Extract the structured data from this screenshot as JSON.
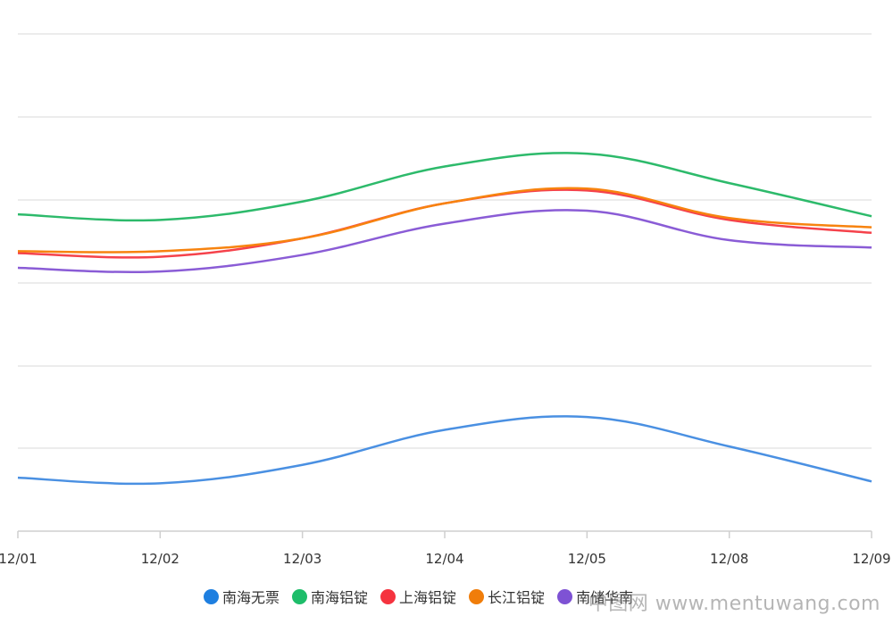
{
  "chart_data": {
    "type": "line",
    "categories": [
      "12/01",
      "12/02",
      "12/03",
      "12/04",
      "12/05",
      "12/08",
      "12/09"
    ],
    "grid": true,
    "legend_position": "bottom",
    "series": [
      {
        "name": "南海无票",
        "color": "#4a90e2",
        "values": [
          19890,
          19860,
          19960,
          20150,
          20220,
          20060,
          19870
        ]
      },
      {
        "name": "南海铝锭",
        "color": "#2dba6b",
        "values": [
          21320,
          21290,
          21390,
          21580,
          21650,
          21490,
          21310
        ]
      },
      {
        "name": "上海铝锭",
        "color": "#f5424b",
        "values": [
          21110,
          21090,
          21190,
          21380,
          21450,
          21290,
          21220
        ]
      },
      {
        "name": "长江铝锭",
        "color": "#f7830f",
        "values": [
          21120,
          21120,
          21190,
          21380,
          21460,
          21300,
          21250
        ]
      },
      {
        "name": "南储华南",
        "color": "#8a5cd6",
        "values": [
          21030,
          21010,
          21100,
          21270,
          21340,
          21180,
          21140
        ]
      }
    ]
  },
  "watermark": "中图网 www.mentuwang.com"
}
